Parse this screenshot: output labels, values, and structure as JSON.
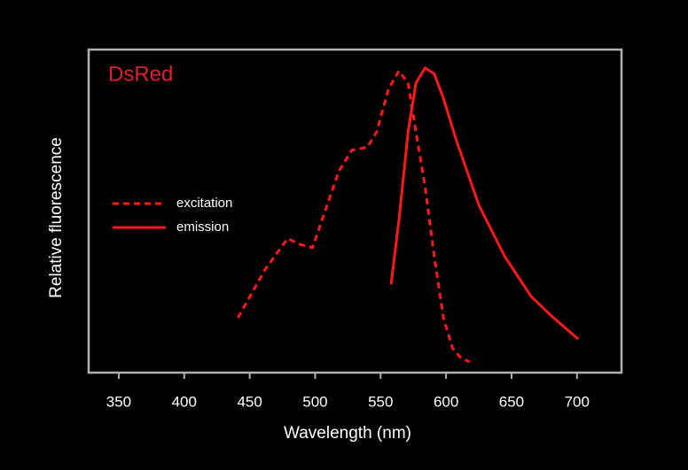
{
  "chart_data": {
    "type": "line",
    "title": "DsRed",
    "xlabel": "Wavelength (nm)",
    "ylabel": "Relative fluorescence",
    "xlim": [
      327,
      734
    ],
    "xticks": [
      350,
      400,
      450,
      500,
      550,
      600,
      650,
      700
    ],
    "ylim": [
      0,
      1.06
    ],
    "legend": "left",
    "series": [
      {
        "name": "excitation",
        "color": "#ff1a1a",
        "dashed": true,
        "x": [
          441,
          462,
          479,
          489,
          498,
          506,
          518,
          528,
          540,
          547,
          556,
          564,
          571,
          577,
          584,
          591,
          598,
          605,
          611,
          618
        ],
        "values": [
          0.18,
          0.34,
          0.44,
          0.42,
          0.41,
          0.51,
          0.66,
          0.73,
          0.74,
          0.79,
          0.93,
          0.99,
          0.95,
          0.79,
          0.61,
          0.38,
          0.18,
          0.08,
          0.05,
          0.035
        ]
      },
      {
        "name": "emission",
        "color": "#ff1a1a",
        "dashed": false,
        "x": [
          558,
          564,
          571,
          577,
          584,
          591,
          598,
          608,
          625,
          645,
          665,
          682,
          701
        ],
        "values": [
          0.29,
          0.5,
          0.79,
          0.95,
          1.0,
          0.98,
          0.9,
          0.76,
          0.55,
          0.38,
          0.25,
          0.18,
          0.11
        ]
      }
    ]
  }
}
